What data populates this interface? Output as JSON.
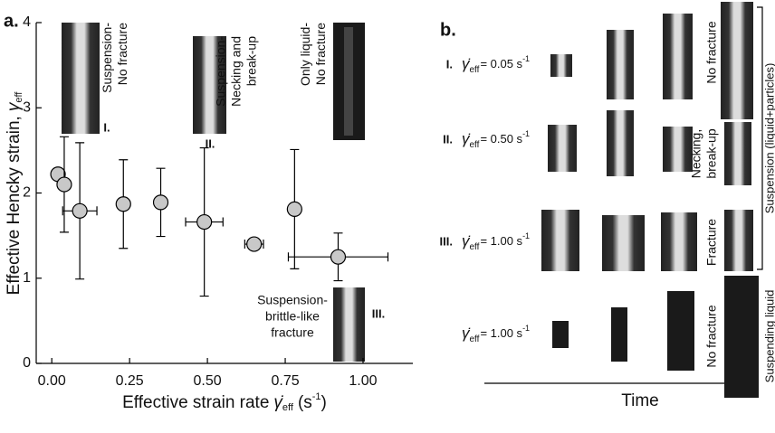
{
  "chart_data": {
    "type": "scatter",
    "panel_label": "a.",
    "xlabel": {
      "text": "Effective strain rate",
      "symbol": "γ̇",
      "sub": "eff",
      "unit": "(s",
      "sup": "-1",
      "close": ")"
    },
    "ylabel": {
      "text": "Effective Hencky strain,",
      "symbol": "γ",
      "sub": "eff"
    },
    "xlim": [
      -0.05,
      1.16
    ],
    "ylim": [
      0,
      4
    ],
    "xticks": [
      {
        "value": 0,
        "label": "0.00"
      },
      {
        "value": 0.25,
        "label": "0.25"
      },
      {
        "value": 0.5,
        "label": "0.50"
      },
      {
        "value": 0.75,
        "label": "0.75"
      },
      {
        "value": 1,
        "label": "1.00"
      }
    ],
    "yticks": [
      0,
      1,
      2,
      3,
      4
    ],
    "series": [
      {
        "color": "#c8c8c8",
        "x": [
          0.02,
          0.04,
          0.09,
          0.23,
          0.35,
          0.49,
          0.65,
          0.78,
          0.92
        ],
        "values": [
          2.22,
          2.1,
          1.79,
          1.87,
          1.89,
          1.66,
          1.4,
          1.81,
          1.25
        ],
        "yerr": [
          null,
          0.56,
          0.8,
          0.52,
          0.4,
          0.87,
          null,
          0.7,
          0.28
        ],
        "xerr": [
          null,
          null,
          0.055,
          null,
          null,
          0.06,
          0.03,
          null,
          0.16
        ]
      }
    ],
    "insets": [
      {
        "lines": [
          "Suspension-",
          "No fracture"
        ],
        "numeral": "I."
      },
      {
        "lines": [
          "Suspension-",
          "Necking and",
          "break-up"
        ],
        "numeral": "II."
      },
      {
        "lines": [
          "Only liquid-",
          "No fracture"
        ]
      },
      {
        "lines": [
          "Suspension-",
          "brittle-like",
          "fracture"
        ],
        "numeral": "III."
      }
    ]
  },
  "panel_b": {
    "panel_label": "b.",
    "rows": [
      {
        "numeral": "I.",
        "symbol": "γ̇",
        "sub": "eff",
        "rate": "= 0.05 s",
        "sup": "-1",
        "outcome": [
          "No fracture"
        ]
      },
      {
        "numeral": "II.",
        "symbol": "γ̇",
        "sub": "eff",
        "rate": "= 0.50 s",
        "sup": "-1",
        "outcome": [
          "Necking,",
          "break-up"
        ]
      },
      {
        "numeral": "III.",
        "symbol": "γ̇",
        "sub": "eff",
        "rate": "= 1.00 s",
        "sup": "-1",
        "outcome": [
          "Fracture"
        ]
      },
      {
        "symbol": "γ̇",
        "sub": "eff",
        "rate": "= 1.00 s",
        "sup": "-1",
        "outcome": [
          "No fracture"
        ]
      }
    ],
    "group_labels": [
      "Suspension (liquid+particles)",
      "Suspending liquid"
    ],
    "time_label": "Time"
  }
}
